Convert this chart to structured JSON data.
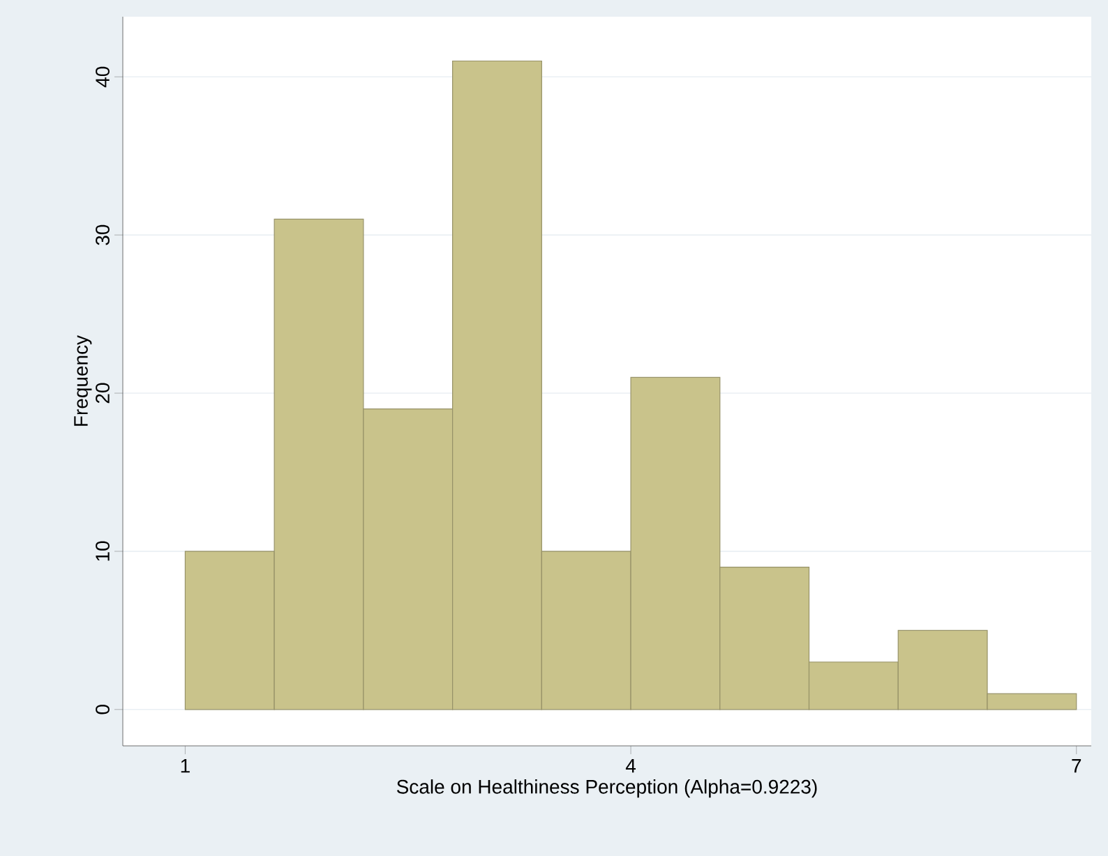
{
  "chart_data": {
    "type": "histogram",
    "xlabel": "Scale on Healthiness Perception (Alpha=0.9223)",
    "ylabel": "Frequency",
    "bins": [
      1,
      1.6,
      2.2,
      2.8,
      3.4,
      4,
      4.6,
      5.2,
      5.8,
      6.4,
      7
    ],
    "values": [
      10,
      31,
      19,
      41,
      10,
      21,
      9,
      3,
      5,
      1
    ],
    "color": "#c9c38b",
    "xlim": [
      0.58,
      7.1
    ],
    "ylim": [
      -2.3,
      43.8
    ],
    "xticks": [
      1,
      4,
      7
    ],
    "yticks": [
      0,
      10,
      20,
      30,
      40
    ],
    "grid": "y"
  }
}
